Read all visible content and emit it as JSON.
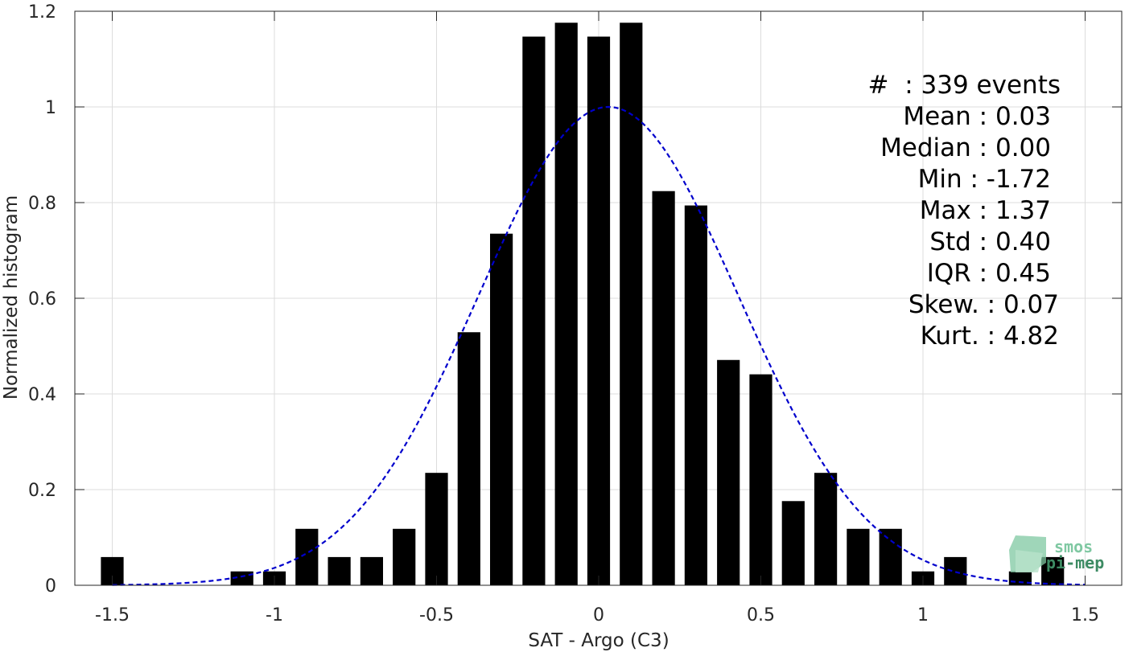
{
  "chart_data": {
    "type": "bar",
    "xlabel": "SAT - Argo (C3)",
    "ylabel": "Normalized histogram",
    "xlim": [
      -1.5,
      1.5
    ],
    "ylim": [
      0,
      1.2
    ],
    "grid": true,
    "xticks": [
      -1.5,
      -1,
      -0.5,
      0,
      0.5,
      1,
      1.5
    ],
    "xtick_labels": [
      "-1.5",
      "-1",
      "-0.5",
      "0",
      "0.5",
      "1",
      "1.5"
    ],
    "yticks": [
      0,
      0.2,
      0.4,
      0.6,
      0.8,
      1,
      1.2
    ],
    "ytick_labels": [
      "0",
      "0.2",
      "0.4",
      "0.6",
      "0.8",
      "1",
      "1.2"
    ],
    "bar_width": 0.07,
    "series": [
      {
        "type": "bar",
        "color": "#000000",
        "x": [
          -1.5,
          -1.1,
          -1.0,
          -0.9,
          -0.8,
          -0.7,
          -0.6,
          -0.5,
          -0.4,
          -0.3,
          -0.2,
          -0.1,
          0.0,
          0.1,
          0.2,
          0.3,
          0.4,
          0.5,
          0.6,
          0.7,
          0.8,
          0.9,
          1.0,
          1.1,
          1.3,
          1.4
        ],
        "values": [
          0.059,
          0.029,
          0.029,
          0.118,
          0.059,
          0.059,
          0.118,
          0.235,
          0.529,
          0.735,
          1.147,
          1.176,
          1.147,
          1.176,
          0.824,
          0.794,
          0.471,
          0.441,
          0.176,
          0.235,
          0.118,
          0.118,
          0.029,
          0.059,
          0.029,
          0.059
        ]
      },
      {
        "type": "line",
        "style": "dashed",
        "color": "#0000cc",
        "gaussian_mean": 0.03,
        "gaussian_std": 0.4,
        "gaussian_peak": 1.0
      }
    ],
    "stats_lines": [
      "#  : 339 events",
      "Mean : 0.03",
      "Median : 0.00",
      "Min : -1.72",
      "Max : 1.37",
      "Std : 0.40",
      "IQR : 0.45",
      "Skew. : 0.07",
      "Kurt. : 4.82"
    ]
  },
  "logo": {
    "line1": "smos",
    "line2": "pi-mep",
    "color_light": "#7fc8a2",
    "color_dark": "#3d8b63"
  }
}
